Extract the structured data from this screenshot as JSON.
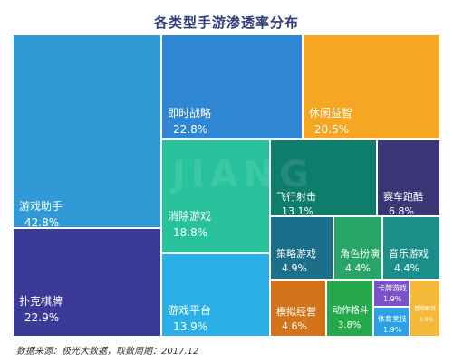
{
  "chart_data": {
    "type": "treemap",
    "title": "各类型手游渗透率分布",
    "unit": "%",
    "items": [
      {
        "name": "游戏助手",
        "value": 42.8,
        "display": "42.8%",
        "color": "#2f9ad6"
      },
      {
        "name": "扑克棋牌",
        "value": 22.9,
        "display": "22.9%",
        "color": "#3b3a98"
      },
      {
        "name": "即时战略",
        "value": 22.8,
        "display": "22.8%",
        "color": "#2f86d3"
      },
      {
        "name": "休闲益智",
        "value": 20.5,
        "display": "20.5%",
        "color": "#f5a623"
      },
      {
        "name": "消除游戏",
        "value": 18.8,
        "display": "18.8%",
        "color": "#27c29b"
      },
      {
        "name": "游戏平台",
        "value": 13.9,
        "display": "13.9%",
        "color": "#2aaee6"
      },
      {
        "name": "飞行射击",
        "value": 13.1,
        "display": "13.1%",
        "color": "#0d7d6c"
      },
      {
        "name": "赛车跑酷",
        "value": 6.8,
        "display": "6.8%",
        "color": "#3b3575"
      },
      {
        "name": "策略游戏",
        "value": 4.9,
        "display": "4.9%",
        "color": "#1b6f8a"
      },
      {
        "name": "角色扮演",
        "value": 4.4,
        "display": "4.4%",
        "color": "#26a566"
      },
      {
        "name": "音乐游戏",
        "value": 4.4,
        "display": "4.4%",
        "color": "#1c8e8a"
      },
      {
        "name": "模拟经营",
        "value": 4.6,
        "display": "4.6%",
        "color": "#d4731a"
      },
      {
        "name": "动作格斗",
        "value": 3.8,
        "display": "3.8%",
        "color": "#26a94d"
      },
      {
        "name": "卡牌游戏",
        "value": 1.9,
        "display": "1.9%",
        "color": "#7c52c8"
      },
      {
        "name": "体育竞技",
        "value": 1.9,
        "display": "1.9%",
        "color": "#2aa0e6"
      },
      {
        "name": "冒险解谜",
        "value": 1.9,
        "display": "1.9%",
        "color": "#f5b93a"
      }
    ]
  },
  "footer": {
    "source": "数据来源：极光大数据，取数周期：2017.12"
  },
  "watermark": "JIANG"
}
